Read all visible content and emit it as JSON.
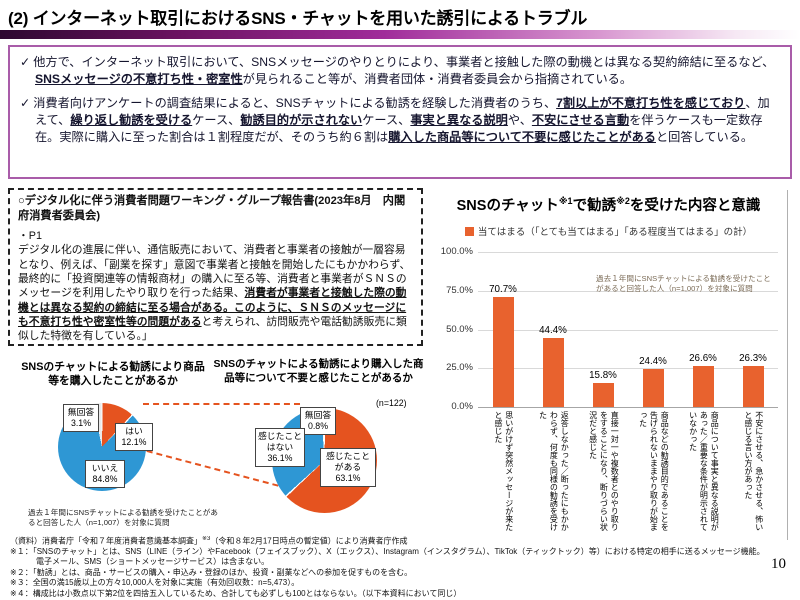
{
  "slide": {
    "title": "(2) インターネット取引におけるSNS・チャットを用いた誘引によるトラブル",
    "page_number": "10"
  },
  "colors": {
    "accent_purple": "#a95ca9",
    "gradient_dark_purple": "#2d0830",
    "gradient_magenta": "#a02c9a",
    "orange": "#e5531f",
    "bar_orange": "#e8622e",
    "blue": "#2e97d4"
  },
  "summary_box": {
    "bullet1": {
      "check": "✓",
      "r0": "他方で、インターネット取引において、SNSメッセージのやりとりにより、事業者と接触した際の動機とは異なる契約締結に至るなど、",
      "r1": "SNSメッセージの不意打ち性・密室性",
      "r2": "が見られること等が、消費者団体・消費者委員会から指摘されている。"
    },
    "bullet2": {
      "check": "✓",
      "r0": "消費者向けアンケートの調査結果によると、SNSチャットによる勧誘を経験した消費者のうち、",
      "r1": "7割以上が不意打ち性を感じており",
      "r2": "、加えて、",
      "r3": "繰り返し勧誘を受ける",
      "r4": "ケース、",
      "r5": "勧誘目的が示されない",
      "r6": "ケース、",
      "r7": "事実と異なる説明",
      "r8": "や、",
      "r9": "不安にさせる言動",
      "r10": "を伴うケースも一定数存在。実際に購入に至った割合は１割程度だが、そのうち約６割は",
      "r11": "購入した商品等について不要に感じたことがある",
      "r12": "と回答している。"
    }
  },
  "report_box": {
    "heading": "○デジタル化に伴う消費者問題ワーキング・グループ報告書(2023年8月　内閣府消費者委員会)",
    "page_ref": "・P1",
    "r0": "デジタル化の進展に伴い、通信販売において、消費者と事業者の接触が一層容易となり、例えば、「副業を探す」意図で事業者と接触を開始したにもかかわらず、最終的に「投資関連等の情報商材」の購入に至る等、消費者と事業者がＳＮＳのメッセージを利用したやり取りを行った結果、",
    "r1": "消費者が事業者と接触した際の動機とは異なる契約の締結に至る場合がある。このように、ＳＮＳのメッセージにも不意打ち性や密室性等の問題がある",
    "r2": "と考えられ、訪問販売や電話勧誘販売に類似した特徴を有している。」"
  },
  "chart_data": [
    {
      "type": "pie",
      "title": "SNSのチャットによる勧誘により商品等を購入したことがあるか",
      "labels": [
        "はい",
        "いいえ",
        "無回答"
      ],
      "values": [
        12.1,
        84.8,
        3.1
      ],
      "pct_labels": [
        "12.1%",
        "84.8%",
        "3.1%"
      ],
      "colors": [
        "#e5531f",
        "#2e97d4",
        "#e9e9e9"
      ],
      "note": "過去１年間にSNSチャットによる勧誘を受けたことがあると回答した人（n=1,007）を対象に質問"
    },
    {
      "type": "pie",
      "title": "SNSのチャットによる勧誘により購入した商品等について不要と感じたことがあるか",
      "labels": [
        "感じたことがある",
        "感じたことはない",
        "無回答"
      ],
      "values": [
        63.1,
        36.1,
        0.8
      ],
      "pct_labels": [
        "63.1%",
        "36.1%",
        "0.8%"
      ],
      "colors": [
        "#e5531f",
        "#2e97d4",
        "#f5f5f5"
      ],
      "n_label": "(n=122)"
    },
    {
      "type": "bar",
      "title_runs": [
        "SNSのチャット",
        "※1",
        "で勧誘",
        "※2",
        "を受けた内容と意識"
      ],
      "legend": "当てはまる（「とても当てはまる」「ある程度当てはまる」の計）",
      "note": "過去１年間にSNSチャットによる勧誘を受けたことがあると回答した人（n=1,007）を対象に質問",
      "categories": [
        "思いがけず突然メッセージが来たと感じた",
        "返答しなかった／断ったにもかかわらず、何度も同様の勧誘を受けた",
        "直接一対一や複数者とのやり取りをすることになり、断りづらい状況だと感じた",
        "商品などの勧誘目的であることを告げられないままやり取りが始まった",
        "商品について事実と異なる説明があった／重要な条件が明示されていなかった",
        "不安にさせる、急かさせる、怖いと感じる言い方があった"
      ],
      "values": [
        70.7,
        44.4,
        15.8,
        24.4,
        26.6,
        26.3
      ],
      "value_labels": [
        "70.7%",
        "44.4%",
        "15.8%",
        "24.4%",
        "26.6%",
        "26.3%"
      ],
      "yticks": [
        "100.0%",
        "75.0%",
        "50.0%",
        "25.0%",
        "0.0%"
      ],
      "ylim": [
        0,
        100
      ],
      "bar_color": "#e8622e"
    }
  ],
  "footnotes": {
    "source": {
      "r0": "（資料）消費者庁「令和７年度消費者意識基本調査」",
      "sup": "※3",
      "r1": "（令和８年2月17日時点の暫定値）により消費者庁作成"
    },
    "note1a": "※１：「SNSのチャット」とは、SNS（LINE（ライン）やFacebook（フェイスブック）、X（エックス）、Instagram（インスタグラム）、TikTok（ティックトック）等）における特定の相手に送るメッセージ機能。",
    "note1b": "電子メール、SMS（ショートメッセージサービス）は含まない。",
    "note2": "※２：「勧誘」とは、商品・サービスの購入・申込み・登録のほか、投資・副業などへの参加を促すものを含む。",
    "note3": "※３：全国の満15歳以上の方々10,000人を対象に実施（有効回収数：n=5,473）。",
    "note4": "※４：構成比は小数点以下第2位を四捨五入しているため、合計しても必ずしも100とはならない。（以下本資料において同じ）"
  }
}
